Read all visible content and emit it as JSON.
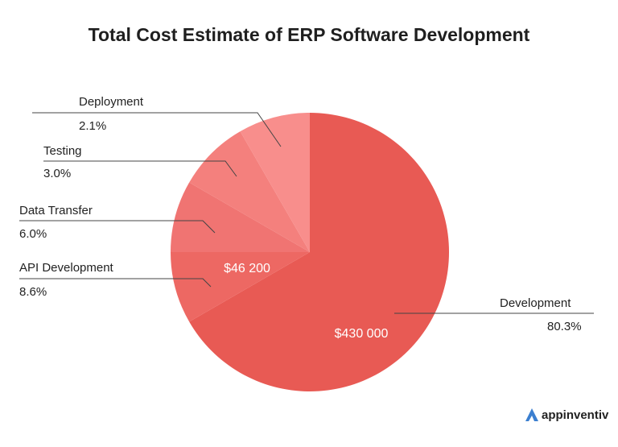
{
  "chart_data": {
    "type": "pie",
    "title": "Total Cost Estimate of ERP Software Development",
    "slices": [
      {
        "label": "Development",
        "percent": 80.3,
        "value_label": "$430 000",
        "color": "#e85a54"
      },
      {
        "label": "API Development",
        "percent": 8.6,
        "value_label": "$46 200",
        "color": "#ed6863"
      },
      {
        "label": "Data Transfer",
        "percent": 6.0,
        "color": "#f07472"
      },
      {
        "label": "Testing",
        "percent": 3.0,
        "color": "#f4807d"
      },
      {
        "label": "Deployment",
        "percent": 2.1,
        "color": "#f88e8c"
      }
    ],
    "percent_labels": [
      "80.3%",
      "8.6%",
      "6.0%",
      "3.0%",
      "2.1%"
    ]
  },
  "brand": {
    "name": "appinventiv",
    "color": "#3b7fd0"
  }
}
